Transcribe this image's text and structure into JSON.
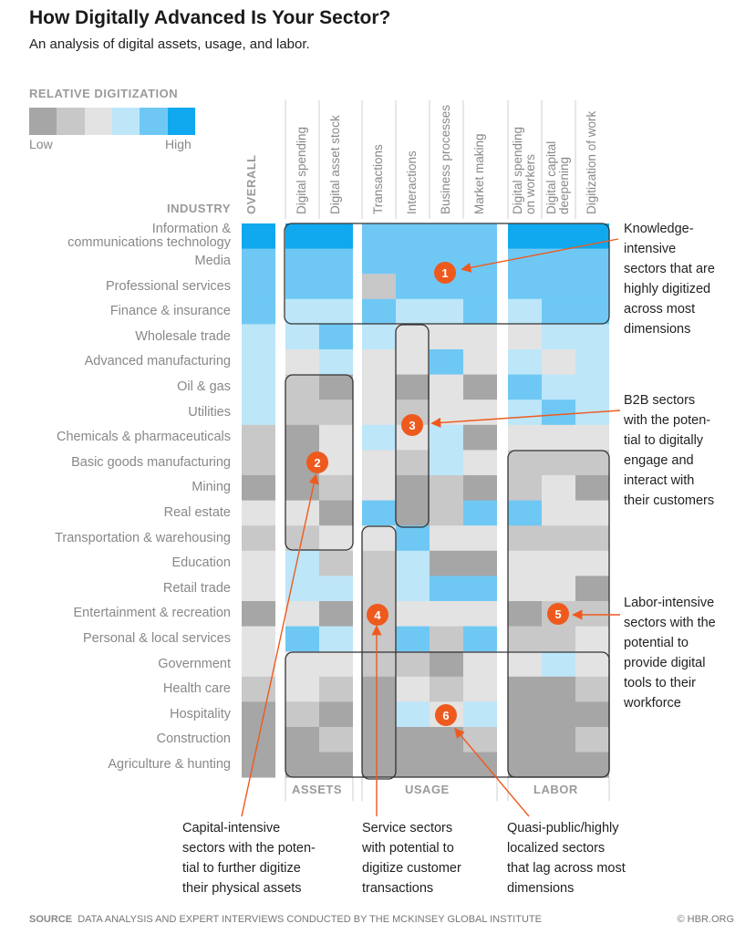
{
  "title": "How Digitally Advanced Is Your Sector?",
  "subtitle": "An analysis of digital assets, usage, and labor.",
  "legend": {
    "title": "RELATIVE DIGITIZATION",
    "low": "Low",
    "high": "High",
    "colors": [
      "#a6a6a6",
      "#c8c8c8",
      "#e3e3e3",
      "#bde6f9",
      "#6fc8f4",
      "#10a8ee"
    ]
  },
  "industry_header": "INDUSTRY",
  "overall_header": "OVERALL",
  "groups": [
    "ASSETS",
    "USAGE",
    "LABOR"
  ],
  "source_label": "SOURCE",
  "source_text": "DATA ANALYSIS AND EXPERT INTERVIEWS CONDUCTED BY THE MCKINSEY GLOBAL INSTITUTE",
  "copyright": "© HBR.ORG",
  "annotations": [
    {
      "num": "1",
      "text": [
        "Knowledge-",
        "intensive",
        "sectors that are",
        "highly digitized",
        "across most",
        "dimensions"
      ]
    },
    {
      "num": "2",
      "text": [
        "Capital-intensive",
        "sectors with the poten-",
        "tial to further digitize",
        "their physical assets"
      ]
    },
    {
      "num": "3",
      "text": [
        "Service sectors",
        "with potential to",
        "digitize customer",
        "transactions"
      ]
    },
    {
      "num": "4",
      "text": [
        "B2B sectors",
        "with the poten-",
        "tial to digitally",
        "engage and",
        "interact with",
        "their customers"
      ]
    },
    {
      "num": "5",
      "text": [
        "Labor-intensive",
        "sectors with the",
        "potential to",
        "provide digital",
        "tools to their",
        "workforce"
      ]
    },
    {
      "num": "6",
      "text": [
        "Quasi-public/highly",
        "localized sectors",
        "that lag across most",
        "dimensions"
      ]
    }
  ],
  "chart_data": {
    "type": "heatmap",
    "title": "How Digitally Advanced Is Your Sector?",
    "scale": "relative digitization, 1 = Low … 6 = High",
    "columns": [
      {
        "name": "OVERALL",
        "group": ""
      },
      {
        "name": "Digital spending",
        "group": "ASSETS"
      },
      {
        "name": "Digital asset stock",
        "group": "ASSETS"
      },
      {
        "name": "Transactions",
        "group": "USAGE"
      },
      {
        "name": "Interactions",
        "group": "USAGE"
      },
      {
        "name": "Business processes",
        "group": "USAGE"
      },
      {
        "name": "Market making",
        "group": "USAGE"
      },
      {
        "name": "Digital spending on workers",
        "group": "LABOR"
      },
      {
        "name": "Digital capital deepening",
        "group": "LABOR"
      },
      {
        "name": "Digitization of work",
        "group": "LABOR"
      }
    ],
    "rows": [
      {
        "industry": "Information & communications technology",
        "values": [
          6,
          6,
          6,
          5,
          5,
          5,
          5,
          6,
          6,
          6
        ]
      },
      {
        "industry": "Media",
        "values": [
          5,
          5,
          5,
          5,
          5,
          5,
          5,
          5,
          5,
          5
        ]
      },
      {
        "industry": "Professional services",
        "values": [
          5,
          5,
          5,
          2,
          5,
          5,
          5,
          5,
          5,
          5
        ]
      },
      {
        "industry": "Finance & insurance",
        "values": [
          5,
          4,
          4,
          5,
          4,
          4,
          5,
          4,
          5,
          5
        ]
      },
      {
        "industry": "Wholesale trade",
        "values": [
          4,
          4,
          5,
          4,
          3,
          3,
          3,
          3,
          4,
          4
        ]
      },
      {
        "industry": "Advanced manufacturing",
        "values": [
          4,
          3,
          4,
          3,
          3,
          5,
          3,
          4,
          3,
          4
        ]
      },
      {
        "industry": "Oil & gas",
        "values": [
          4,
          2,
          1,
          3,
          1,
          3,
          1,
          5,
          4,
          4
        ]
      },
      {
        "industry": "Utilities",
        "values": [
          4,
          2,
          2,
          3,
          2,
          3,
          3,
          4,
          5,
          4
        ]
      },
      {
        "industry": "Chemicals & pharmaceuticals",
        "values": [
          2,
          1,
          3,
          4,
          3,
          4,
          1,
          3,
          3,
          3
        ]
      },
      {
        "industry": "Basic goods manufacturing",
        "values": [
          2,
          1,
          3,
          3,
          2,
          4,
          3,
          2,
          2,
          2
        ]
      },
      {
        "industry": "Mining",
        "values": [
          1,
          1,
          2,
          3,
          1,
          2,
          1,
          2,
          3,
          1
        ]
      },
      {
        "industry": "Real estate",
        "values": [
          3,
          3,
          1,
          5,
          1,
          2,
          5,
          5,
          3,
          3
        ]
      },
      {
        "industry": "Transportation & warehousing",
        "values": [
          2,
          2,
          3,
          3,
          5,
          3,
          3,
          2,
          2,
          2
        ]
      },
      {
        "industry": "Education",
        "values": [
          3,
          4,
          2,
          2,
          4,
          1,
          1,
          3,
          3,
          3
        ]
      },
      {
        "industry": "Retail trade",
        "values": [
          3,
          4,
          4,
          2,
          4,
          5,
          5,
          3,
          3,
          1
        ]
      },
      {
        "industry": "Entertainment & recreation",
        "values": [
          1,
          3,
          1,
          2,
          3,
          3,
          3,
          1,
          2,
          2
        ]
      },
      {
        "industry": "Personal & local services",
        "values": [
          3,
          5,
          4,
          2,
          5,
          2,
          5,
          2,
          2,
          3
        ]
      },
      {
        "industry": "Government",
        "values": [
          3,
          3,
          3,
          2,
          2,
          1,
          3,
          3,
          4,
          3
        ]
      },
      {
        "industry": "Health care",
        "values": [
          2,
          3,
          2,
          1,
          3,
          2,
          3,
          1,
          1,
          2
        ]
      },
      {
        "industry": "Hospitality",
        "values": [
          1,
          2,
          1,
          1,
          4,
          3,
          4,
          1,
          1,
          1
        ]
      },
      {
        "industry": "Construction",
        "values": [
          1,
          1,
          2,
          1,
          1,
          1,
          2,
          1,
          1,
          2
        ]
      },
      {
        "industry": "Agriculture & hunting",
        "values": [
          1,
          1,
          1,
          1,
          1,
          1,
          1,
          1,
          1,
          1
        ]
      }
    ]
  }
}
